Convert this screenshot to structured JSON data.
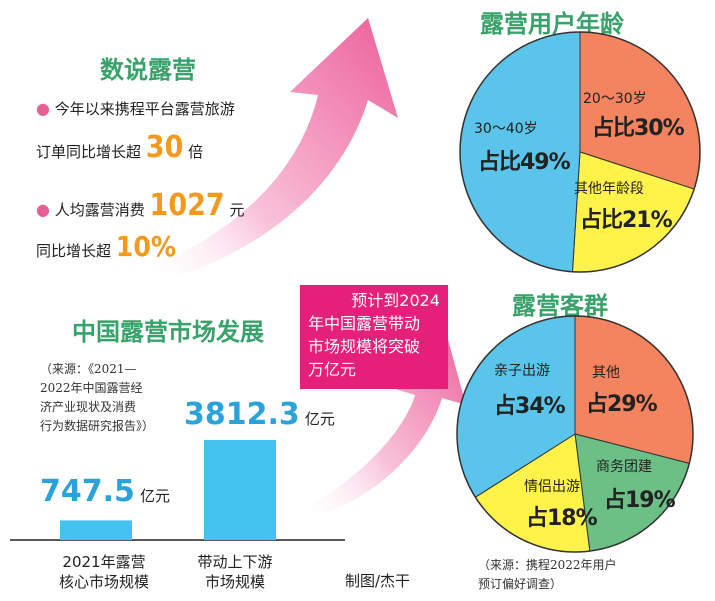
{
  "left_panel": {
    "section_title": "数说露营",
    "stat1_line1": "今年以来携程平台露营旅游",
    "stat1_line2_prefix": "订单同比增长超",
    "stat1_value": "30",
    "stat1_unit": "倍",
    "stat2_prefix": "人均露营消费",
    "stat2_value": "1027",
    "stat2_unit": "元",
    "stat3_prefix": "同比增长超",
    "stat3_value": "10%"
  },
  "market": {
    "title": "中国露营市场发展",
    "source_lines": [
      "（来源：《2021—",
      "2022年中国露营经",
      "济产业现状及消费",
      "行为数据研究报告》）"
    ],
    "callout_lines": [
      "预计到2024",
      "年中国露营带动",
      "市场规模将突破",
      "万亿元"
    ],
    "credit": "制图/杰干"
  },
  "colors": {
    "blue": "#5bc4ea",
    "orange": "#f4845f",
    "yellow": "#fff34a",
    "green": "#6cbf85",
    "bar": "#45c3f0",
    "title_green": "#37a36a",
    "pink": "#e5207a",
    "arrow_pink": "#f07aab"
  },
  "chart_data": [
    {
      "type": "bar",
      "categories": [
        "2021年露营核心市场规模",
        "带动上下游市场规模"
      ],
      "category_lines": [
        [
          "2021年露营",
          "核心市场规模"
        ],
        [
          "带动上下游",
          "市场规模"
        ]
      ],
      "values": [
        747.5,
        3812.3
      ],
      "value_labels": [
        "747.5",
        "3812.3"
      ],
      "unit": "亿元"
    },
    {
      "type": "pie",
      "title": "露营用户年龄",
      "slices": [
        {
          "label": "20～30岁",
          "value": 30,
          "pct_text": "占比30%",
          "color": "#f4845f"
        },
        {
          "label": "其他年龄段",
          "value": 21,
          "pct_text": "占比21%",
          "color": "#fff34a"
        },
        {
          "label": "30～40岁",
          "value": 49,
          "pct_text": "占比49%",
          "color": "#5bc4ea"
        }
      ]
    },
    {
      "type": "pie",
      "title": "露营客群",
      "slices": [
        {
          "label": "其他",
          "value": 29,
          "pct_text": "占29%",
          "color": "#f4845f"
        },
        {
          "label": "商务团建",
          "value": 19,
          "pct_text": "占19%",
          "color": "#6cbf85"
        },
        {
          "label": "情侣出游",
          "value": 18,
          "pct_text": "占18%",
          "color": "#fff34a"
        },
        {
          "label": "亲子出游",
          "value": 34,
          "pct_text": "占34%",
          "color": "#5bc4ea"
        }
      ],
      "source_lines": [
        "（来源：携程2022年用户",
        "预订偏好调查）"
      ]
    }
  ]
}
